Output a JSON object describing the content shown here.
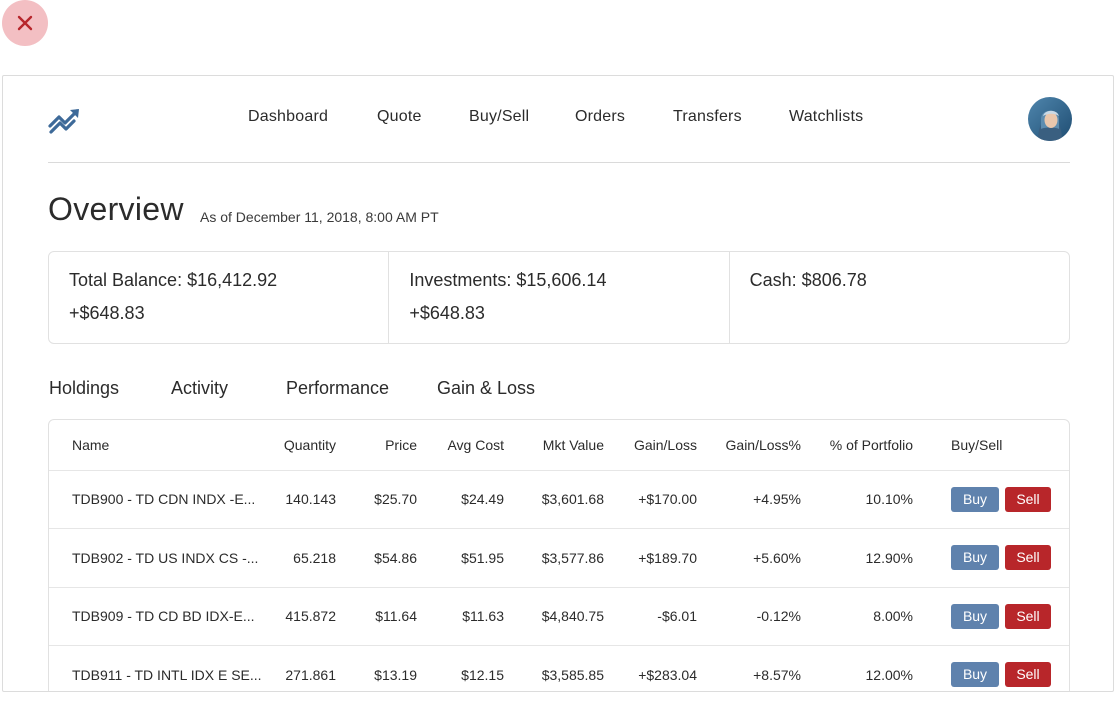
{
  "nav": {
    "items": [
      {
        "id": "dashboard",
        "label": "Dashboard"
      },
      {
        "id": "quote",
        "label": "Quote"
      },
      {
        "id": "buy-sell",
        "label": "Buy/Sell"
      },
      {
        "id": "orders",
        "label": "Orders"
      },
      {
        "id": "transfers",
        "label": "Transfers"
      },
      {
        "id": "watchlists",
        "label": "Watchlists"
      }
    ]
  },
  "icons": {
    "close": "close-icon",
    "logo": "trending-up-icon",
    "avatar": "user-avatar"
  },
  "colors": {
    "accent_blue": "#5f82ad",
    "sell_red": "#b8262a",
    "close_bg": "#f3bfc3",
    "logo_blue": "#3e6a99"
  },
  "overview": {
    "title": "Overview",
    "as_of": "As of December 11, 2018, 8:00 AM PT"
  },
  "summary": {
    "total_balance_label": "Total Balance: $16,412.92",
    "total_balance_change": "+$648.83",
    "investments_label": "Investments: $15,606.14",
    "investments_change": "+$648.83",
    "cash_label": "Cash: $806.78"
  },
  "tabs": [
    {
      "id": "holdings",
      "label": "Holdings"
    },
    {
      "id": "activity",
      "label": "Activity"
    },
    {
      "id": "performance",
      "label": "Performance"
    },
    {
      "id": "gain-loss",
      "label": "Gain & Loss"
    }
  ],
  "holdings": {
    "columns": [
      "Name",
      "Quantity",
      "Price",
      "Avg Cost",
      "Mkt Value",
      "Gain/Loss",
      "Gain/Loss%",
      "% of Portfolio",
      "Buy/Sell"
    ],
    "buy_label": "Buy",
    "sell_label": "Sell",
    "rows": [
      {
        "name": "TDB900 - TD CDN INDX -E...",
        "quantity": "140.143",
        "price": "$25.70",
        "avg_cost": "$24.49",
        "mkt_value": "$3,601.68",
        "gain_loss": "+$170.00",
        "gain_loss_pct": "+4.95%",
        "portfolio_pct": "10.10%"
      },
      {
        "name": "TDB902 - TD US INDX CS -...",
        "quantity": "65.218",
        "price": "$54.86",
        "avg_cost": "$51.95",
        "mkt_value": "$3,577.86",
        "gain_loss": "+$189.70",
        "gain_loss_pct": "+5.60%",
        "portfolio_pct": "12.90%"
      },
      {
        "name": "TDB909 - TD CD BD IDX-E...",
        "quantity": "415.872",
        "price": "$11.64",
        "avg_cost": "$11.63",
        "mkt_value": "$4,840.75",
        "gain_loss": "-$6.01",
        "gain_loss_pct": "-0.12%",
        "portfolio_pct": "8.00%"
      },
      {
        "name": "TDB911 - TD INTL IDX E SE...",
        "quantity": "271.861",
        "price": "$13.19",
        "avg_cost": "$12.15",
        "mkt_value": "$3,585.85",
        "gain_loss": "+$283.04",
        "gain_loss_pct": "+8.57%",
        "portfolio_pct": "12.00%"
      }
    ]
  }
}
